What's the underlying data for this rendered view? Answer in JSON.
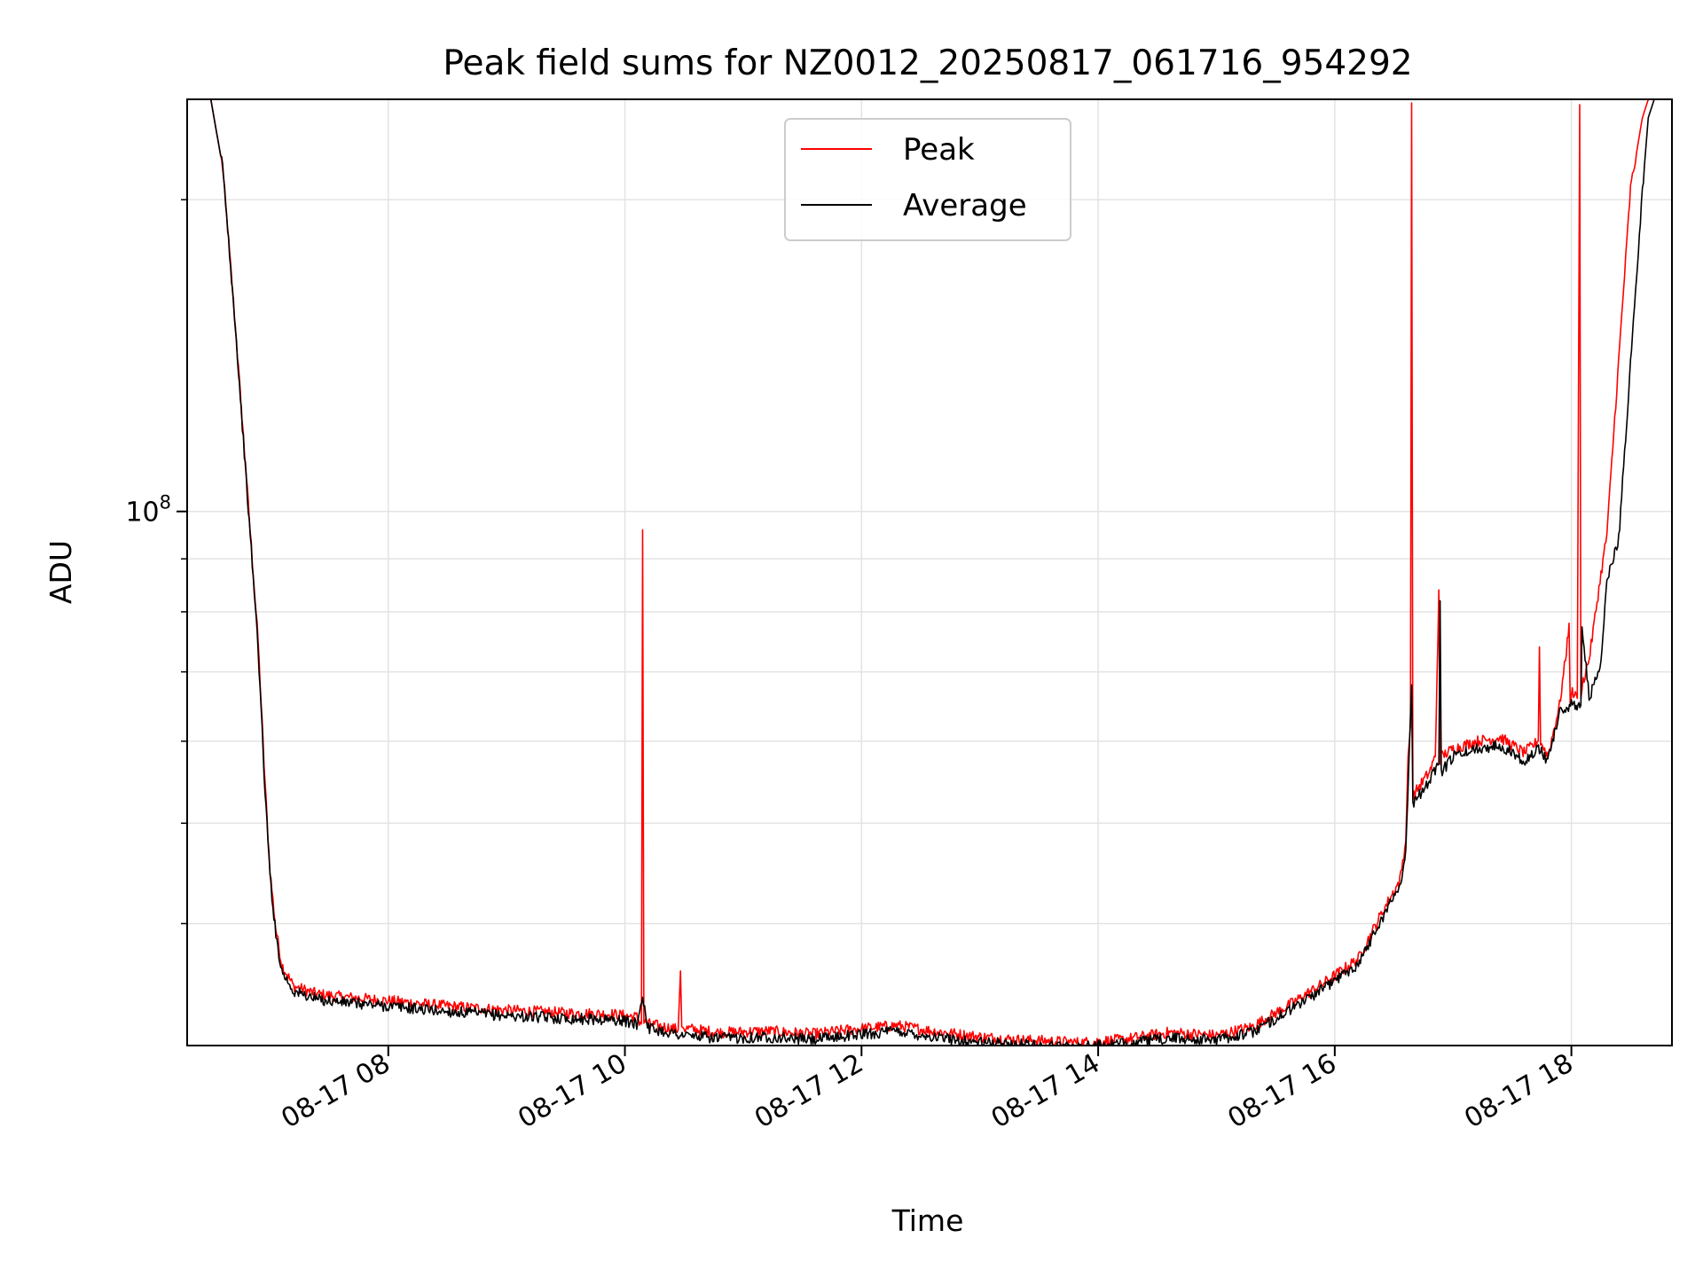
{
  "chart_data": {
    "type": "line",
    "title": "Peak field sums for NZ0012_20250817_061716_954292",
    "xlabel": "Time",
    "ylabel": "ADU",
    "yscale": "log",
    "grid": true,
    "legend_placement": "upper-center",
    "x_ticks": [
      "08-17 08",
      "08-17 10",
      "08-17 12",
      "08-17 14",
      "08-17 16",
      "08-17 18"
    ],
    "y_tick_label": "10^8",
    "xlim_hours": [
      6.3,
      18.85
    ],
    "ylim": [
      30500000,
      250000000
    ],
    "series": [
      {
        "name": "Peak",
        "color": "#ff0000",
        "x_hours": [
          6.3,
          6.5,
          6.6,
          6.7,
          6.8,
          6.9,
          6.95,
          7.0,
          7.05,
          7.1,
          7.2,
          7.4,
          7.6,
          8.0,
          8.5,
          9.0,
          9.5,
          9.9,
          10.0,
          10.1,
          10.14,
          10.15,
          10.16,
          10.2,
          10.45,
          10.47,
          10.48,
          10.5,
          10.8,
          11.2,
          11.6,
          11.9,
          12.3,
          12.6,
          13.0,
          13.3,
          13.6,
          13.85,
          14.2,
          14.6,
          15.0,
          15.3,
          15.6,
          15.9,
          16.2,
          16.4,
          16.55,
          16.6,
          16.62,
          16.64,
          16.65,
          16.66,
          16.7,
          16.8,
          16.85,
          16.88,
          16.89,
          16.9,
          17.0,
          17.2,
          17.4,
          17.6,
          17.72,
          17.73,
          17.74,
          17.8,
          17.9,
          17.95,
          17.98,
          17.99,
          18.0,
          18.05,
          18.07,
          18.08,
          18.09,
          18.15,
          18.25,
          18.3,
          18.4,
          18.5,
          18.6,
          18.65,
          18.7,
          18.85
        ],
        "y": [
          250000000,
          250000000,
          215000000,
          155000000,
          108000000,
          75000000,
          57000000,
          45000000,
          39500000,
          36500000,
          34800000,
          34200000,
          34000000,
          33700000,
          33300000,
          33000000,
          32800000,
          32700000,
          32600000,
          32500000,
          32000000,
          96000000,
          32200000,
          32000000,
          31600000,
          36000000,
          31800000,
          31700000,
          31400000,
          31500000,
          31300000,
          31600000,
          31900000,
          31500000,
          31100000,
          30900000,
          30800000,
          30700000,
          30900000,
          31400000,
          31200000,
          31800000,
          33300000,
          35000000,
          37000000,
          41000000,
          44000000,
          48000000,
          58000000,
          62000000,
          248000000,
          53000000,
          54000000,
          56000000,
          58000000,
          84000000,
          57000000,
          58000000,
          59000000,
          60000000,
          60500000,
          58500000,
          60000000,
          74000000,
          60000000,
          58000000,
          65000000,
          72000000,
          78000000,
          65000000,
          67000000,
          66000000,
          247000000,
          66000000,
          68000000,
          72000000,
          87000000,
          95000000,
          140000000,
          205000000,
          240000000,
          250000000,
          250000000,
          250000000
        ]
      },
      {
        "name": "Average",
        "color": "#000000",
        "x_hours": [
          6.3,
          6.5,
          6.6,
          6.7,
          6.8,
          6.9,
          6.95,
          7.0,
          7.05,
          7.1,
          7.2,
          7.4,
          7.6,
          8.0,
          8.5,
          9.0,
          9.5,
          9.9,
          10.0,
          10.1,
          10.15,
          10.2,
          10.5,
          10.8,
          11.2,
          11.6,
          11.9,
          12.3,
          12.6,
          13.0,
          13.3,
          13.6,
          13.85,
          14.2,
          14.6,
          15.0,
          15.3,
          15.6,
          15.9,
          16.2,
          16.4,
          16.55,
          16.6,
          16.65,
          16.66,
          16.7,
          16.8,
          16.88,
          16.89,
          16.9,
          17.0,
          17.2,
          17.4,
          17.6,
          17.73,
          17.8,
          17.9,
          18.0,
          18.08,
          18.09,
          18.15,
          18.25,
          18.3,
          18.4,
          18.5,
          18.6,
          18.65,
          18.7,
          18.85
        ],
        "y": [
          250000000,
          250000000,
          215000000,
          155000000,
          107000000,
          74000000,
          56000000,
          44500000,
          39000000,
          36000000,
          34400000,
          33800000,
          33600000,
          33300000,
          32900000,
          32600000,
          32400000,
          32300000,
          32200000,
          32000000,
          34000000,
          31700000,
          31200000,
          31000000,
          31100000,
          30900000,
          31200000,
          31500000,
          31100000,
          30700000,
          30600000,
          30500000,
          30400000,
          30600000,
          31000000,
          30900000,
          31400000,
          32900000,
          34600000,
          36600000,
          40500000,
          43500000,
          47000000,
          68000000,
          52000000,
          53000000,
          55000000,
          57000000,
          82000000,
          56000000,
          58000000,
          59000000,
          59500000,
          57500000,
          59000000,
          57500000,
          64000000,
          65000000,
          65000000,
          78000000,
          66000000,
          71000000,
          86000000,
          94000000,
          139000000,
          204000000,
          240000000,
          250000000,
          250000000
        ]
      }
    ]
  }
}
